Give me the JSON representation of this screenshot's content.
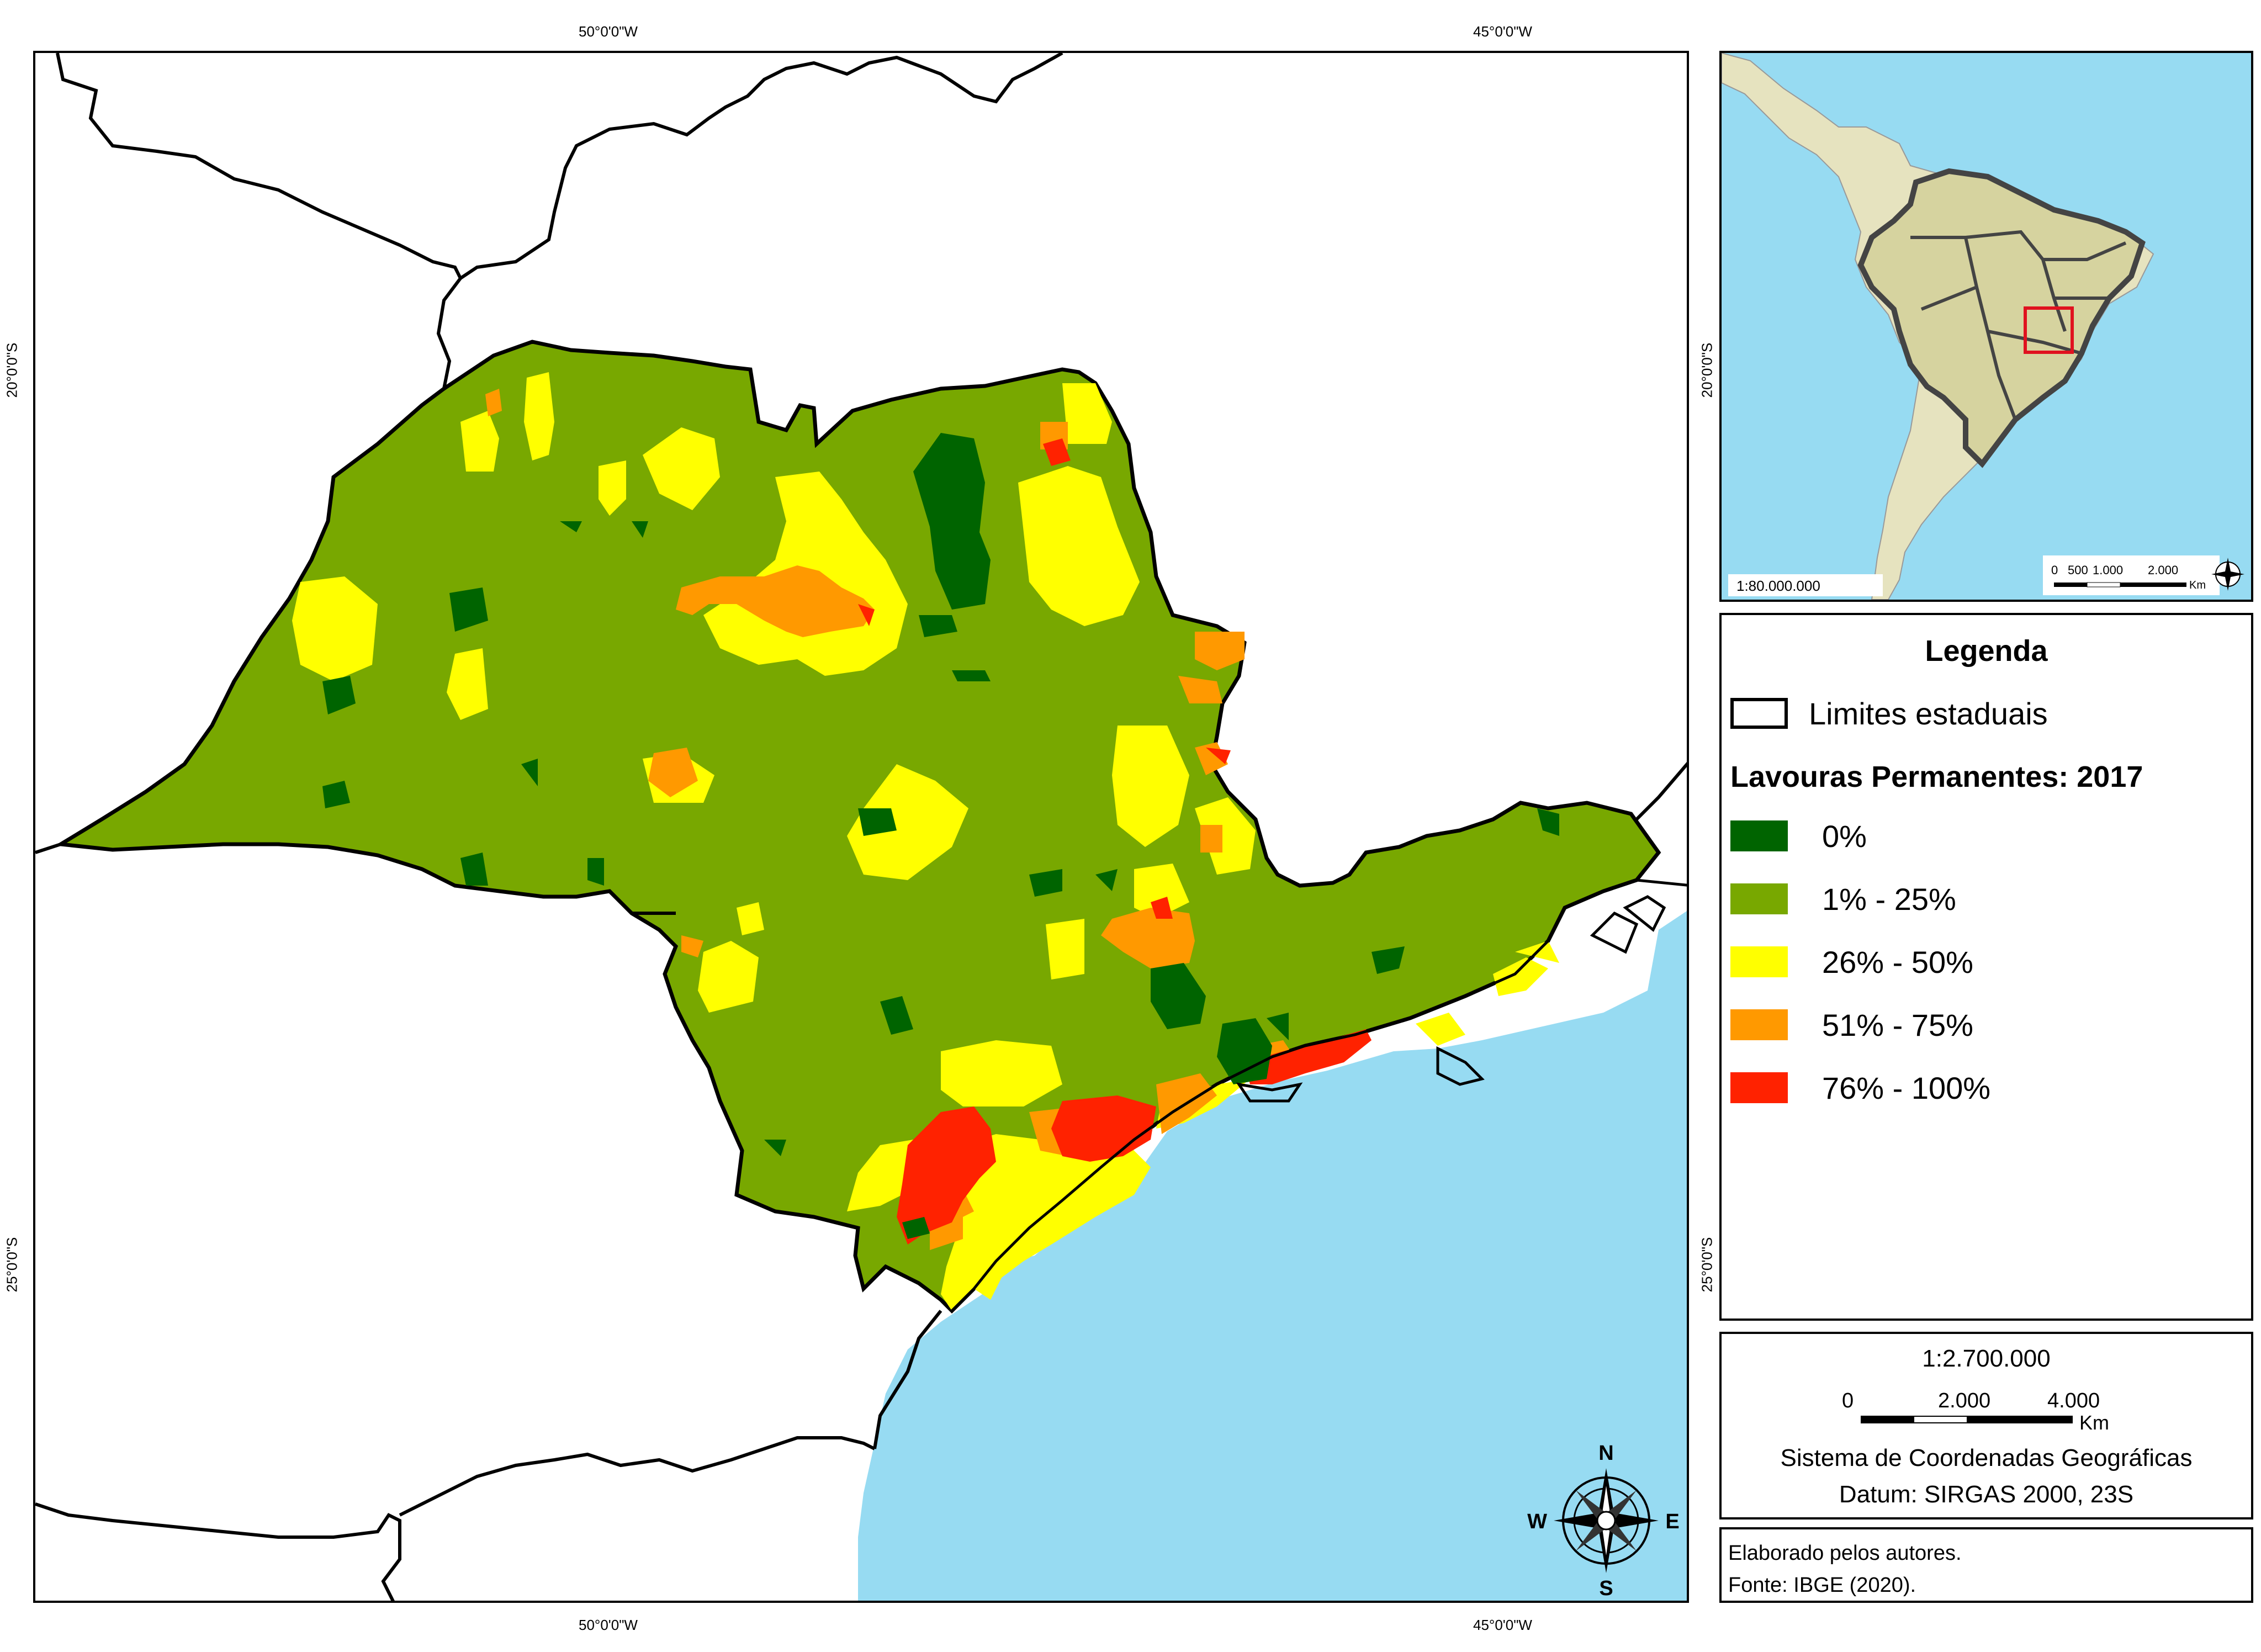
{
  "graticule": {
    "lon_labels": [
      "50°0'0\"W",
      "45°0'0\"W"
    ],
    "lat_labels": [
      "20°0'0\"S",
      "25°0'0\"S"
    ]
  },
  "map": {
    "north_arrow": {
      "n": "N",
      "s": "S",
      "e": "E",
      "w": "W"
    },
    "colors": {
      "ocean": "#97dbf2",
      "class_0": "#006400",
      "class_1_25": "#78a800",
      "class_26_50": "#ffff00",
      "class_51_75": "#ff9900",
      "class_76_100": "#ff2200",
      "state_border": "#000000"
    }
  },
  "inset": {
    "scale_text": "1:80.000.000",
    "scale_ticks": [
      "0",
      "500",
      "1.000",
      "2.000"
    ],
    "scale_unit": "Km",
    "colors": {
      "ocean": "#97dbf2",
      "land": "#e6e3bf",
      "brazil": "#d6d39f",
      "highlight": "#e0121f"
    }
  },
  "legend": {
    "title": "Legenda",
    "boundary_label": "Limites estaduais",
    "subtitle": "Lavouras Permanentes: 2017",
    "classes": [
      {
        "label": "0%",
        "color": "#006400"
      },
      {
        "label": "1% - 25%",
        "color": "#78a800"
      },
      {
        "label": "26% - 50%",
        "color": "#ffff00"
      },
      {
        "label": "51% - 75%",
        "color": "#ff9900"
      },
      {
        "label": "76% - 100%",
        "color": "#ff2200"
      }
    ]
  },
  "scale": {
    "ratio": "1:2.700.000",
    "ticks": [
      "0",
      "2.000",
      "4.000"
    ],
    "unit": "Km",
    "crs": "Sistema de Coordenadas Geográficas",
    "datum": "Datum: SIRGAS 2000, 23S"
  },
  "credits": {
    "line1": "Elaborado pelos autores.",
    "line2": "Fonte: IBGE (2020)."
  }
}
